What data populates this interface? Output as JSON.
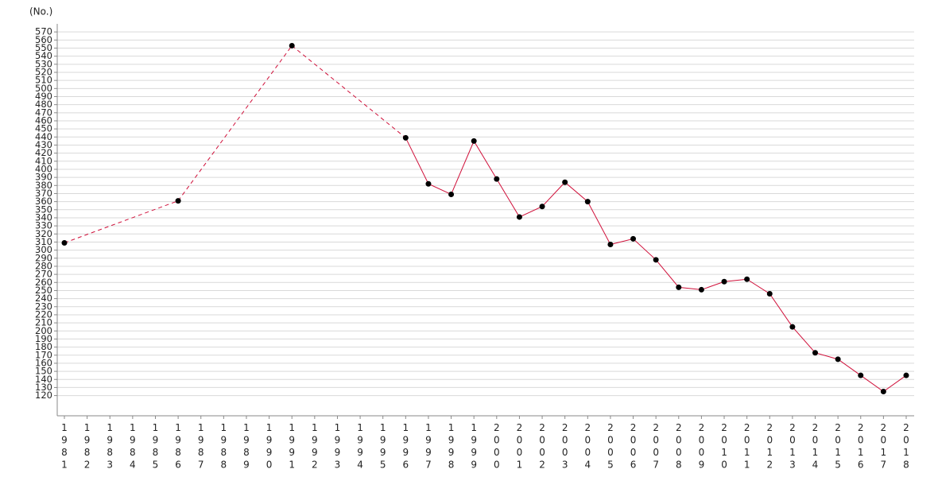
{
  "chart_data": {
    "type": "line",
    "unit_label": "(No.)",
    "categories": [
      "1981",
      "1982",
      "1983",
      "1984",
      "1985",
      "1986",
      "1987",
      "1988",
      "1989",
      "1990",
      "1991",
      "1992",
      "1993",
      "1994",
      "1995",
      "1996",
      "1997",
      "1998",
      "1999",
      "2000",
      "2001",
      "2002",
      "2003",
      "2004",
      "2005",
      "2006",
      "2007",
      "2008",
      "2009",
      "2010",
      "2011",
      "2012",
      "2013",
      "2014",
      "2015",
      "2016",
      "2017",
      "2018"
    ],
    "values": [
      309,
      null,
      null,
      null,
      null,
      361,
      null,
      null,
      null,
      null,
      553,
      null,
      null,
      null,
      null,
      439,
      382,
      369,
      435,
      388,
      341,
      354,
      384,
      360,
      307,
      314,
      288,
      254,
      251,
      261,
      264,
      246,
      205,
      173,
      165,
      145,
      125,
      145
    ],
    "color": "#d0103a",
    "marker_color": "#000000",
    "ylim": [
      95,
      580
    ],
    "yticks": [
      120,
      130,
      140,
      150,
      160,
      170,
      180,
      190,
      200,
      210,
      220,
      230,
      240,
      250,
      260,
      270,
      280,
      290,
      300,
      310,
      320,
      330,
      340,
      350,
      360,
      370,
      380,
      390,
      400,
      410,
      420,
      430,
      440,
      450,
      460,
      470,
      480,
      490,
      500,
      510,
      520,
      530,
      540,
      550,
      560,
      570
    ],
    "grid": true,
    "gap_style": "dashed"
  }
}
